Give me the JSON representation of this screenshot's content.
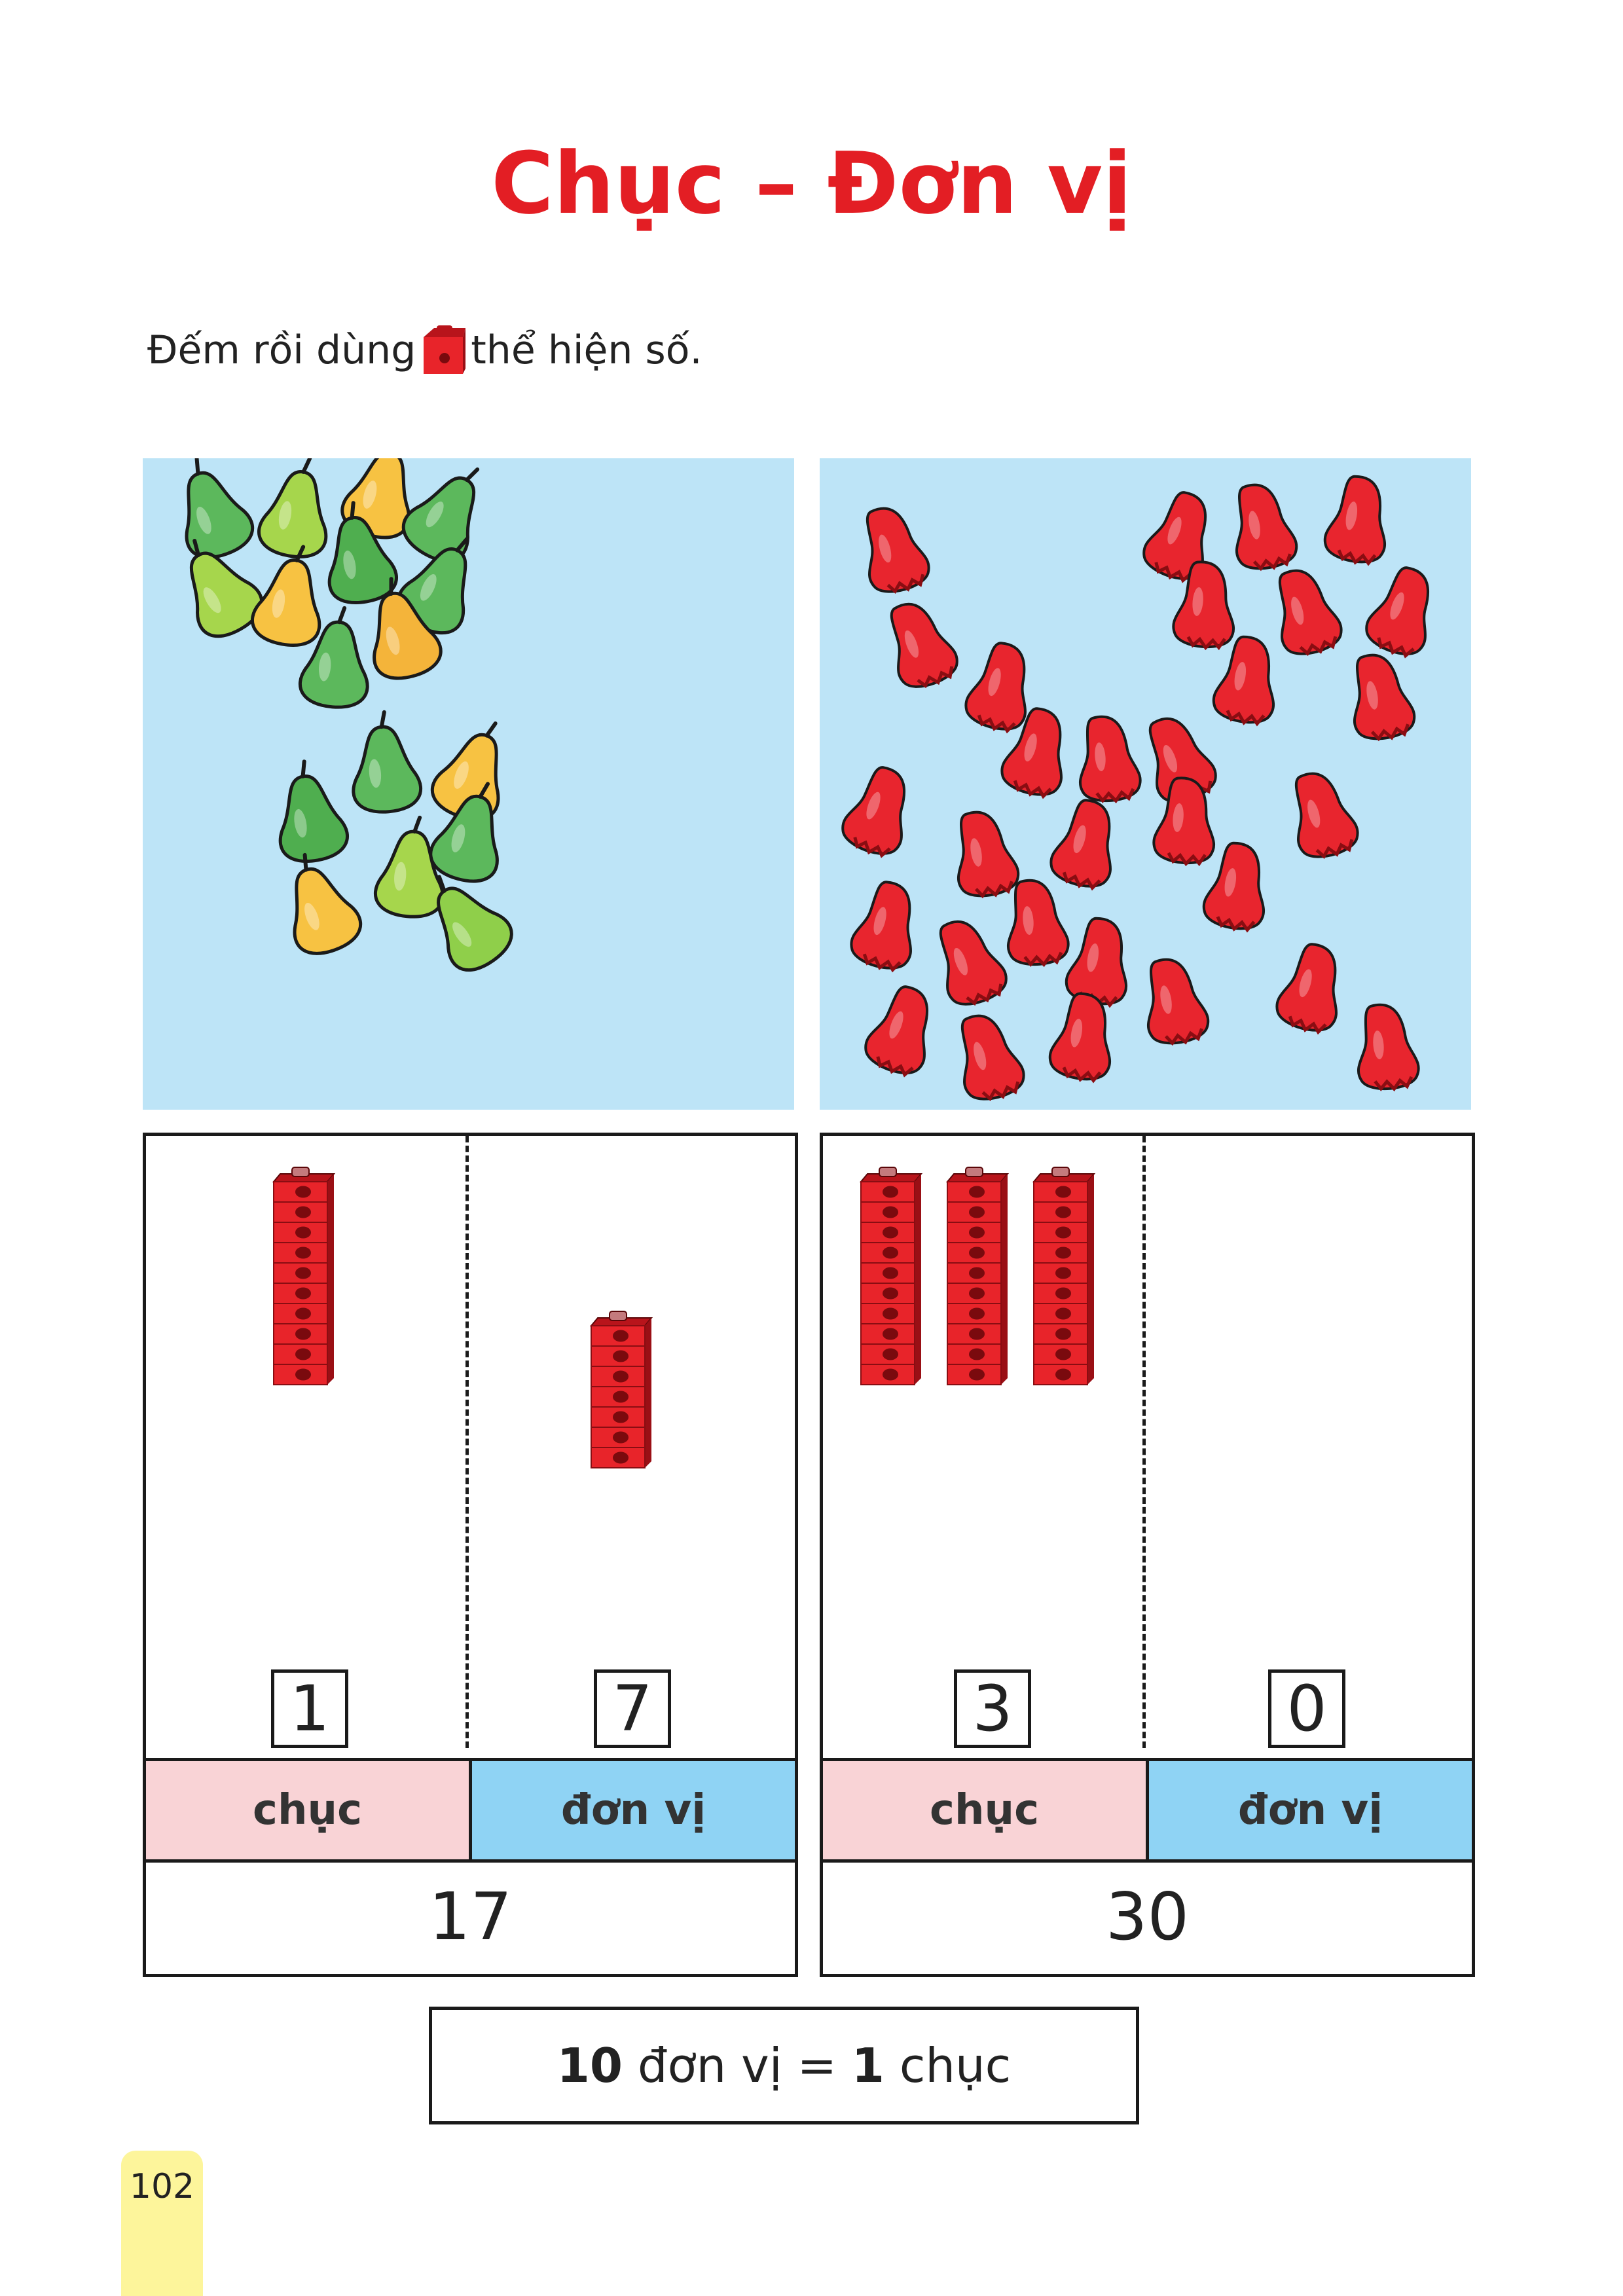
{
  "title": "Chục – Đơn vị",
  "instruction": {
    "before": "Đếm rồi dùng",
    "icon": "red-cube-icon",
    "after": "thể hiện số."
  },
  "colors": {
    "title": "#e31e24",
    "panel_bg": "#bde4f7",
    "chuc_bg": "#f9d3d6",
    "donvi_bg": "#8fd3f4",
    "cube": "#e8242a",
    "page_tab": "#fdf59b"
  },
  "exercises": [
    {
      "picture": "pears",
      "tens_digit": "1",
      "ones_digit": "7",
      "chuc_label": "chục",
      "donvi_label": "đơn vị",
      "total": "17"
    },
    {
      "picture": "rose-apples",
      "tens_digit": "3",
      "ones_digit": "0",
      "chuc_label": "chục",
      "donvi_label": "đơn vị",
      "total": "30"
    }
  ],
  "rule": {
    "n1": "10",
    "unit1": "đơn vị =",
    "n2": "1",
    "unit2": "chục"
  },
  "page_number": "102"
}
